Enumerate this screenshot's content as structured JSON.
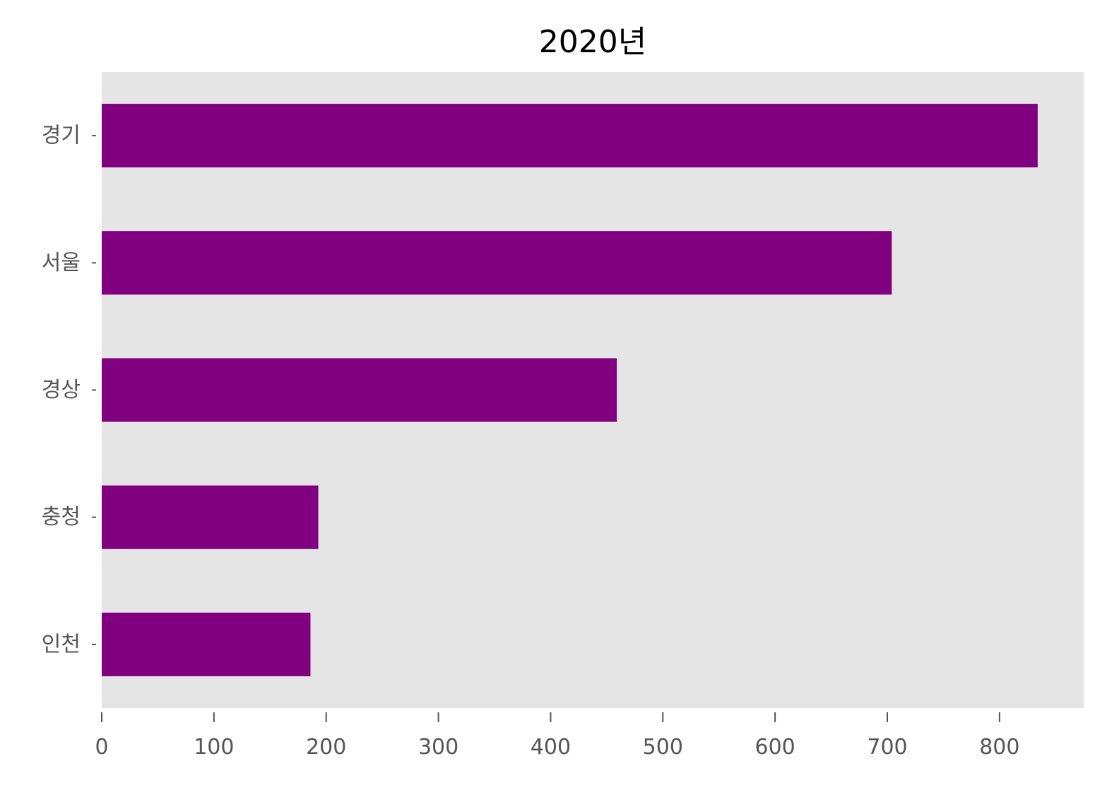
{
  "chart_data": {
    "type": "bar",
    "orientation": "horizontal",
    "title": "2020년",
    "xlabel": "",
    "ylabel": "",
    "categories": [
      "경기",
      "서울",
      "경상",
      "충청",
      "인천"
    ],
    "values": [
      834,
      704,
      459,
      193,
      186
    ],
    "xlim": [
      0,
      875
    ],
    "xticks": [
      0,
      100,
      200,
      300,
      400,
      500,
      600,
      700,
      800
    ],
    "grid": false,
    "legend": "none",
    "colors": {
      "bar": "#800080",
      "plot_background": "#e5e5e5"
    }
  }
}
